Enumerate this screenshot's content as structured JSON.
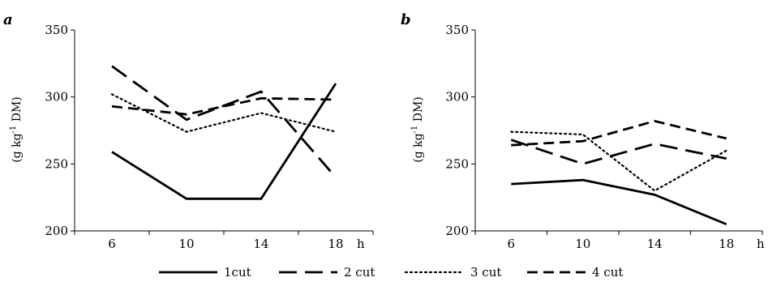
{
  "chart_data": [
    {
      "type": "line",
      "panel": "a",
      "title": "",
      "xlabel": "h",
      "ylabel_main": "(g kg",
      "ylabel_sup": "-1",
      "ylabel_tail": " DM)",
      "x": [
        6,
        10,
        14,
        18
      ],
      "xticks": [
        "6",
        "10",
        "14",
        "18"
      ],
      "ylim": [
        200,
        350
      ],
      "yticks": [
        200,
        250,
        300,
        350
      ],
      "grid": false,
      "series": [
        {
          "name": "1cut",
          "style": "solid",
          "values": [
            259,
            224,
            224,
            310
          ]
        },
        {
          "name": "2 cut",
          "style": "longdash",
          "values": [
            323,
            283,
            304,
            240
          ]
        },
        {
          "name": "3 cut",
          "style": "dotted",
          "values": [
            302,
            274,
            288,
            274
          ]
        },
        {
          "name": "4 cut",
          "style": "dash",
          "values": [
            293,
            287,
            299,
            298
          ]
        }
      ]
    },
    {
      "type": "line",
      "panel": "b",
      "title": "",
      "xlabel": "h",
      "ylabel_main": "(g kg",
      "ylabel_sup": "-1",
      "ylabel_tail": " DM)",
      "x": [
        6,
        10,
        14,
        18
      ],
      "xticks": [
        "6",
        "10",
        "14",
        "18"
      ],
      "ylim": [
        200,
        350
      ],
      "yticks": [
        200,
        250,
        300,
        350
      ],
      "grid": false,
      "series": [
        {
          "name": "1cut",
          "style": "solid",
          "values": [
            235,
            238,
            227,
            205
          ]
        },
        {
          "name": "2 cut",
          "style": "longdash",
          "values": [
            268,
            250,
            265,
            254
          ]
        },
        {
          "name": "3 cut",
          "style": "dotted",
          "values": [
            274,
            272,
            230,
            260
          ]
        },
        {
          "name": "4 cut",
          "style": "dash",
          "values": [
            264,
            267,
            282,
            269
          ]
        }
      ]
    }
  ],
  "legend": {
    "placement": "bottom-center",
    "items": [
      {
        "label": "1cut",
        "style": "solid"
      },
      {
        "label": "2 cut",
        "style": "longdash"
      },
      {
        "label": "3 cut",
        "style": "dotted"
      },
      {
        "label": "4 cut",
        "style": "dash"
      }
    ]
  }
}
